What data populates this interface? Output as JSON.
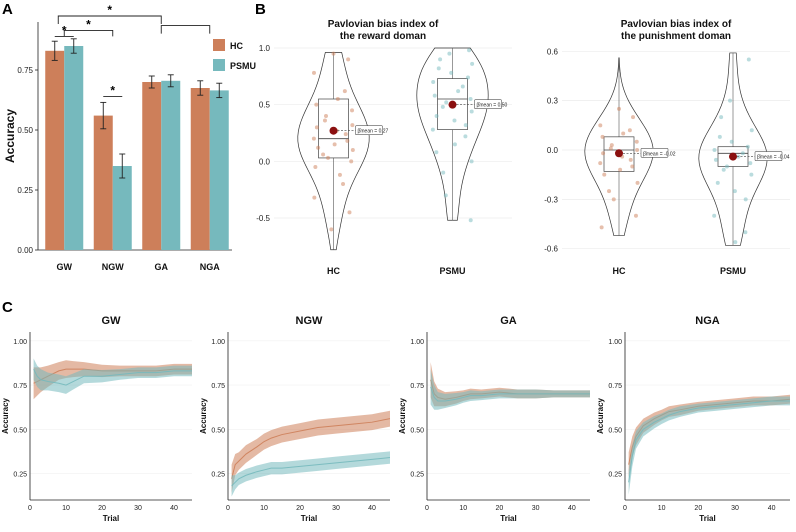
{
  "colors": {
    "hc": "#cd7f5a",
    "psmu": "#76b9bd",
    "dot": "#8b1010"
  },
  "panels": {
    "a": "A",
    "b": "B",
    "c": "C"
  },
  "chart_data": [
    {
      "id": "A",
      "type": "bar",
      "ylabel": "Accuracy",
      "ylim": [
        0,
        0.95
      ],
      "yticks": [
        "0.00",
        "0.25",
        "0.50",
        "0.75"
      ],
      "categories": [
        "GW",
        "NGW",
        "GA",
        "NGA"
      ],
      "legend": {
        "placement": "right",
        "entries": [
          "HC",
          "PSMU"
        ]
      },
      "series": [
        {
          "name": "HC",
          "values": [
            0.83,
            0.56,
            0.7,
            0.675
          ],
          "err": [
            0.04,
            0.055,
            0.025,
            0.03
          ]
        },
        {
          "name": "PSMU",
          "values": [
            0.85,
            0.35,
            0.705,
            0.665
          ],
          "err": [
            0.03,
            0.05,
            0.025,
            0.03
          ]
        }
      ],
      "significance": [
        {
          "label": "*",
          "from": "GW-HC",
          "to": "GW-PSMU"
        },
        {
          "label": "*",
          "from": "GW",
          "to": "NGW"
        },
        {
          "label": "*",
          "from": "NGW-HC",
          "to": "NGW-PSMU"
        },
        {
          "label": "*",
          "from": "GW",
          "to": "GA"
        },
        {
          "label": "",
          "from": "GA",
          "to": "NGA"
        }
      ],
      "grid": false
    },
    {
      "id": "B-reward",
      "type": "violin",
      "title_lines": [
        "Pavlovian bias index of",
        "the reward doman"
      ],
      "categories": [
        "HC",
        "PSMU"
      ],
      "ylim": [
        -0.8,
        1.0
      ],
      "yticks": [
        "-0.5",
        "0.0",
        "0.5",
        "1.0"
      ],
      "groups": [
        {
          "name": "HC",
          "median": 0.2,
          "q1": 0.03,
          "q3": 0.55,
          "whisker": [
            -0.78,
            0.96
          ],
          "mean": 0.27,
          "mean_label": "0.27",
          "points": [
            0.95,
            0.9,
            0.78,
            0.62,
            0.55,
            0.5,
            0.45,
            0.4,
            0.36,
            0.32,
            0.3,
            0.27,
            0.24,
            0.2,
            0.18,
            0.15,
            0.12,
            0.1,
            0.06,
            0.03,
            0.0,
            -0.05,
            -0.12,
            -0.2,
            -0.32,
            -0.45,
            -0.6
          ]
        },
        {
          "name": "PSMU",
          "median": 0.55,
          "q1": 0.28,
          "q3": 0.73,
          "whisker": [
            -0.52,
            1.0
          ],
          "mean": 0.5,
          "mean_label": "0.50",
          "points": [
            0.98,
            0.95,
            0.9,
            0.86,
            0.82,
            0.78,
            0.74,
            0.7,
            0.66,
            0.62,
            0.58,
            0.55,
            0.52,
            0.48,
            0.44,
            0.4,
            0.36,
            0.32,
            0.28,
            0.22,
            0.15,
            0.08,
            0.0,
            -0.1,
            -0.3,
            -0.52
          ]
        }
      ],
      "mean_prefix": "β̄mean = "
    },
    {
      "id": "B-punishment",
      "type": "violin",
      "title_lines": [
        "Pavlovian bias index of",
        "the punishment doman"
      ],
      "categories": [
        "HC",
        "PSMU"
      ],
      "ylim": [
        -0.62,
        0.62
      ],
      "yticks": [
        "-0.6",
        "-0.3",
        "0.0",
        "0.3",
        "0.6"
      ],
      "groups": [
        {
          "name": "HC",
          "median": 0.0,
          "q1": -0.13,
          "q3": 0.08,
          "whisker": [
            -0.52,
            0.56
          ],
          "mean": -0.02,
          "mean_label": "-0.02",
          "points": [
            0.25,
            0.2,
            0.15,
            0.12,
            0.1,
            0.08,
            0.05,
            0.03,
            0.01,
            0.0,
            -0.02,
            -0.04,
            -0.06,
            -0.08,
            -0.1,
            -0.12,
            -0.15,
            -0.2,
            -0.25,
            -0.3,
            -0.4,
            -0.47
          ]
        },
        {
          "name": "PSMU",
          "median": -0.02,
          "q1": -0.1,
          "q3": 0.02,
          "whisker": [
            -0.58,
            0.59
          ],
          "mean": -0.04,
          "mean_label": "-0.04",
          "points": [
            0.55,
            0.3,
            0.2,
            0.12,
            0.08,
            0.05,
            0.02,
            0.0,
            -0.02,
            -0.04,
            -0.06,
            -0.08,
            -0.1,
            -0.12,
            -0.15,
            -0.2,
            -0.25,
            -0.3,
            -0.4,
            -0.5,
            -0.56
          ]
        }
      ]
    },
    {
      "id": "C-GW",
      "type": "line",
      "title": "GW",
      "xlabel": "Trial",
      "ylabel": "Accuracy",
      "xlim": [
        0,
        45
      ],
      "ylim": [
        0.1,
        1.05
      ],
      "xticks": [
        "0",
        "10",
        "20",
        "30",
        "40"
      ],
      "yticks": [
        "0.25",
        "0.50",
        "0.75",
        "1.00"
      ],
      "x": [
        1,
        2,
        3,
        5,
        8,
        10,
        12,
        15,
        20,
        25,
        30,
        35,
        40,
        45
      ],
      "series": [
        {
          "name": "HC",
          "values": [
            0.76,
            0.77,
            0.78,
            0.8,
            0.83,
            0.84,
            0.84,
            0.84,
            0.83,
            0.83,
            0.83,
            0.83,
            0.84,
            0.84
          ],
          "band": [
            0.09,
            0.08,
            0.07,
            0.06,
            0.05,
            0.05,
            0.045,
            0.04,
            0.035,
            0.03,
            0.03,
            0.03,
            0.03,
            0.03
          ]
        },
        {
          "name": "PSMU",
          "values": [
            0.84,
            0.8,
            0.78,
            0.77,
            0.76,
            0.75,
            0.77,
            0.8,
            0.8,
            0.81,
            0.82,
            0.82,
            0.83,
            0.83
          ],
          "band": [
            0.06,
            0.06,
            0.06,
            0.05,
            0.05,
            0.05,
            0.045,
            0.04,
            0.035,
            0.03,
            0.03,
            0.03,
            0.03,
            0.03
          ]
        }
      ]
    },
    {
      "id": "C-NGW",
      "type": "line",
      "title": "NGW",
      "xlabel": "Trial",
      "ylabel": "Accuracy",
      "xlim": [
        0,
        45
      ],
      "ylim": [
        0.1,
        1.05
      ],
      "xticks": [
        "0",
        "10",
        "20",
        "30",
        "40"
      ],
      "yticks": [
        "0.25",
        "0.50",
        "0.75",
        "1.00"
      ],
      "x": [
        1,
        2,
        3,
        5,
        8,
        10,
        12,
        15,
        20,
        25,
        30,
        35,
        40,
        45
      ],
      "series": [
        {
          "name": "HC",
          "values": [
            0.22,
            0.3,
            0.32,
            0.36,
            0.4,
            0.43,
            0.45,
            0.47,
            0.49,
            0.51,
            0.52,
            0.53,
            0.54,
            0.56
          ],
          "band": [
            0.08,
            0.06,
            0.05,
            0.05,
            0.045,
            0.045,
            0.045,
            0.045,
            0.045,
            0.045,
            0.045,
            0.045,
            0.045,
            0.045
          ]
        },
        {
          "name": "PSMU",
          "values": [
            0.18,
            0.2,
            0.22,
            0.24,
            0.26,
            0.27,
            0.28,
            0.28,
            0.29,
            0.3,
            0.31,
            0.32,
            0.33,
            0.34
          ],
          "band": [
            0.06,
            0.04,
            0.035,
            0.035,
            0.035,
            0.035,
            0.035,
            0.035,
            0.035,
            0.035,
            0.035,
            0.035,
            0.035,
            0.035
          ]
        }
      ]
    },
    {
      "id": "C-GA",
      "type": "line",
      "title": "GA",
      "xlabel": "Trial",
      "ylabel": "Accuracy",
      "xlim": [
        0,
        45
      ],
      "ylim": [
        0.1,
        1.05
      ],
      "xticks": [
        "0",
        "10",
        "20",
        "30",
        "40"
      ],
      "yticks": [
        "0.25",
        "0.50",
        "0.75",
        "1.00"
      ],
      "x": [
        1,
        2,
        3,
        5,
        8,
        10,
        12,
        15,
        20,
        25,
        30,
        35,
        40,
        45
      ],
      "series": [
        {
          "name": "HC",
          "values": [
            0.78,
            0.7,
            0.68,
            0.67,
            0.68,
            0.69,
            0.7,
            0.7,
            0.71,
            0.7,
            0.7,
            0.7,
            0.7,
            0.7
          ],
          "band": [
            0.1,
            0.07,
            0.05,
            0.04,
            0.035,
            0.03,
            0.03,
            0.025,
            0.025,
            0.025,
            0.025,
            0.02,
            0.02,
            0.02
          ]
        },
        {
          "name": "PSMU",
          "values": [
            0.74,
            0.68,
            0.66,
            0.66,
            0.67,
            0.68,
            0.69,
            0.69,
            0.7,
            0.7,
            0.7,
            0.7,
            0.7,
            0.7
          ],
          "band": [
            0.1,
            0.07,
            0.05,
            0.04,
            0.035,
            0.03,
            0.03,
            0.025,
            0.025,
            0.025,
            0.025,
            0.02,
            0.02,
            0.02
          ]
        }
      ]
    },
    {
      "id": "C-NGA",
      "type": "line",
      "title": "NGA",
      "xlabel": "Trial",
      "ylabel": "Accuracy",
      "xlim": [
        0,
        45
      ],
      "ylim": [
        0.1,
        1.05
      ],
      "xticks": [
        "0",
        "10",
        "20",
        "30",
        "40"
      ],
      "yticks": [
        "0.25",
        "0.50",
        "0.75",
        "1.00"
      ],
      "x": [
        1,
        2,
        3,
        5,
        8,
        10,
        12,
        15,
        20,
        25,
        30,
        35,
        40,
        45
      ],
      "series": [
        {
          "name": "HC",
          "values": [
            0.3,
            0.4,
            0.46,
            0.52,
            0.56,
            0.58,
            0.6,
            0.61,
            0.63,
            0.64,
            0.65,
            0.66,
            0.66,
            0.67
          ],
          "band": [
            0.07,
            0.06,
            0.05,
            0.04,
            0.035,
            0.03,
            0.03,
            0.03,
            0.025,
            0.025,
            0.025,
            0.025,
            0.025,
            0.025
          ]
        },
        {
          "name": "PSMU",
          "values": [
            0.2,
            0.35,
            0.44,
            0.5,
            0.54,
            0.56,
            0.58,
            0.6,
            0.62,
            0.63,
            0.64,
            0.65,
            0.66,
            0.66
          ],
          "band": [
            0.07,
            0.06,
            0.05,
            0.04,
            0.035,
            0.03,
            0.03,
            0.03,
            0.025,
            0.025,
            0.025,
            0.025,
            0.025,
            0.025
          ]
        }
      ]
    }
  ]
}
